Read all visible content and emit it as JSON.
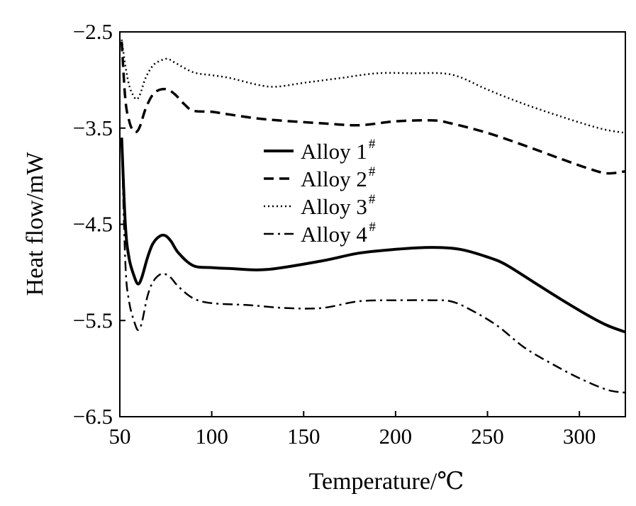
{
  "chart_data": {
    "type": "line",
    "title": "",
    "xlabel": "Temperature/℃",
    "ylabel": "Heat flow/mW",
    "xlim": [
      50,
      325
    ],
    "ylim": [
      -6.5,
      -2.5
    ],
    "xticks": [
      50,
      100,
      150,
      200,
      250,
      300
    ],
    "yticks": [
      -6.5,
      -5.5,
      -4.5,
      -3.5,
      -2.5
    ],
    "xtick_labels": [
      "50",
      "100",
      "150",
      "200",
      "250",
      "300"
    ],
    "ytick_labels": [
      "−6.5",
      "−5.5",
      "−4.5",
      "−3.5",
      "−2.5"
    ],
    "grid": false,
    "legend_position": "center",
    "series": [
      {
        "name": "Alloy 1",
        "superscript": "#",
        "style": "solid",
        "color": "#000000",
        "x": [
          51,
          53,
          55,
          58,
          60,
          62,
          65,
          68,
          72,
          75,
          78,
          82,
          90,
          100,
          110,
          130,
          160,
          180,
          200,
          220,
          235,
          250,
          260,
          275,
          290,
          305,
          315,
          325
        ],
        "y": [
          -3.6,
          -4.5,
          -4.85,
          -5.05,
          -5.12,
          -5.05,
          -4.85,
          -4.7,
          -4.62,
          -4.62,
          -4.68,
          -4.8,
          -4.93,
          -4.95,
          -4.96,
          -4.97,
          -4.88,
          -4.8,
          -4.76,
          -4.74,
          -4.76,
          -4.84,
          -4.92,
          -5.1,
          -5.28,
          -5.45,
          -5.55,
          -5.62
        ]
      },
      {
        "name": "Alloy 2",
        "superscript": "#",
        "style": "dashed",
        "color": "#000000",
        "x": [
          51,
          53,
          55,
          57,
          59,
          61,
          64,
          68,
          72,
          76,
          80,
          85,
          90,
          100,
          110,
          130,
          160,
          180,
          200,
          220,
          230,
          250,
          270,
          290,
          305,
          315,
          325
        ],
        "y": [
          -2.6,
          -3.2,
          -3.42,
          -3.52,
          -3.54,
          -3.48,
          -3.3,
          -3.15,
          -3.1,
          -3.1,
          -3.15,
          -3.25,
          -3.32,
          -3.33,
          -3.36,
          -3.41,
          -3.45,
          -3.47,
          -3.43,
          -3.42,
          -3.45,
          -3.55,
          -3.68,
          -3.82,
          -3.92,
          -3.97,
          -3.95
        ]
      },
      {
        "name": "Alloy 3",
        "superscript": "#",
        "style": "dotted",
        "color": "#000000",
        "x": [
          51,
          53,
          55,
          57,
          59,
          61,
          64,
          68,
          72,
          76,
          80,
          90,
          100,
          110,
          125,
          135,
          150,
          170,
          190,
          210,
          225,
          235,
          250,
          270,
          290,
          305,
          315,
          325
        ],
        "y": [
          -2.58,
          -2.85,
          -3.05,
          -3.15,
          -3.2,
          -3.15,
          -2.98,
          -2.85,
          -2.8,
          -2.78,
          -2.82,
          -2.92,
          -2.95,
          -2.98,
          -3.05,
          -3.07,
          -3.03,
          -2.98,
          -2.93,
          -2.93,
          -2.93,
          -2.97,
          -3.1,
          -3.25,
          -3.38,
          -3.47,
          -3.52,
          -3.55
        ]
      },
      {
        "name": "Alloy 4",
        "superscript": "#",
        "style": "dashdot",
        "color": "#000000",
        "x": [
          51,
          53,
          55,
          58,
          60,
          62,
          65,
          68,
          72,
          75,
          78,
          82,
          90,
          100,
          120,
          140,
          160,
          180,
          200,
          220,
          230,
          240,
          255,
          270,
          285,
          300,
          315,
          325
        ],
        "y": [
          -3.6,
          -4.9,
          -5.3,
          -5.52,
          -5.6,
          -5.52,
          -5.25,
          -5.1,
          -5.02,
          -5.02,
          -5.06,
          -5.15,
          -5.27,
          -5.32,
          -5.34,
          -5.37,
          -5.37,
          -5.3,
          -5.29,
          -5.29,
          -5.3,
          -5.38,
          -5.55,
          -5.78,
          -5.95,
          -6.1,
          -6.22,
          -6.25
        ]
      }
    ]
  }
}
